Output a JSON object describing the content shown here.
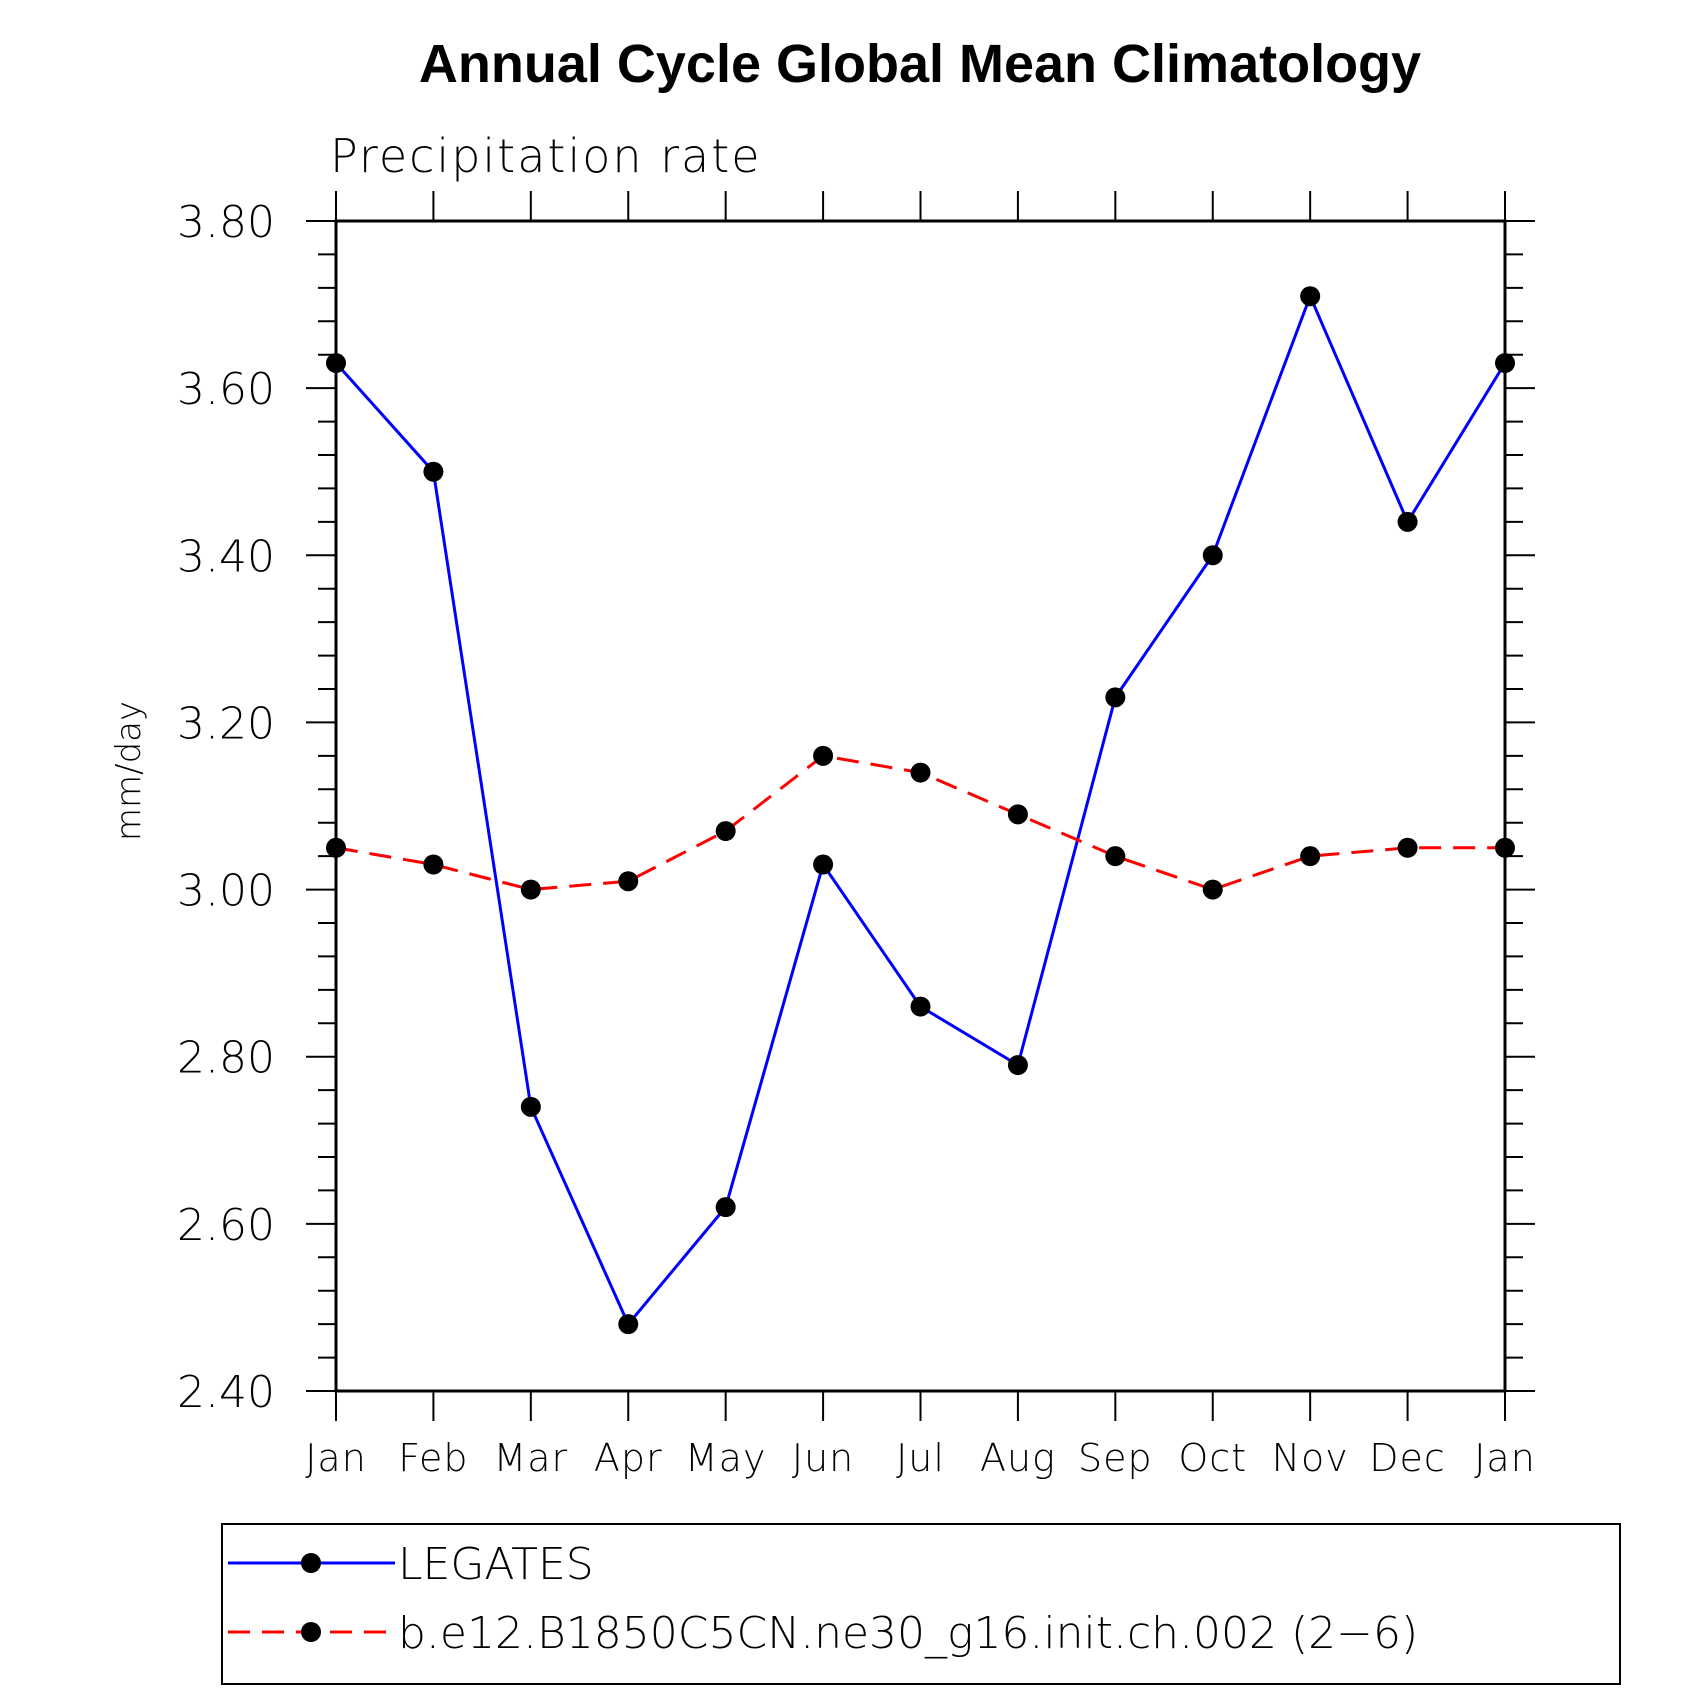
{
  "chart_data": {
    "type": "line",
    "title": "Annual Cycle Global Mean Climatology",
    "subtitle": "Precipitation rate",
    "xlabel": "",
    "ylabel": "mm/day",
    "categories": [
      "Jan",
      "Feb",
      "Mar",
      "Apr",
      "May",
      "Jun",
      "Jul",
      "Aug",
      "Sep",
      "Oct",
      "Nov",
      "Dec",
      "Jan"
    ],
    "ylim": [
      2.4,
      3.8
    ],
    "yticks": [
      "2.40",
      "2.60",
      "2.80",
      "3.00",
      "3.20",
      "3.40",
      "3.60",
      "3.80"
    ],
    "grid": false,
    "legend_position": "bottom",
    "series": [
      {
        "name": "LEGATES",
        "color": "#0000ff",
        "style": "solid",
        "values": [
          3.63,
          3.5,
          2.74,
          2.48,
          2.62,
          3.03,
          2.86,
          2.79,
          3.23,
          3.4,
          3.71,
          3.44,
          3.63
        ]
      },
      {
        "name": "b.e12.B1850C5CN.ne30_g16.init.ch.002 (2−6)",
        "color": "#ff0000",
        "style": "dashed",
        "values": [
          3.05,
          3.03,
          3.0,
          3.01,
          3.07,
          3.16,
          3.14,
          3.09,
          3.04,
          3.0,
          3.04,
          3.05,
          3.05
        ]
      }
    ]
  }
}
